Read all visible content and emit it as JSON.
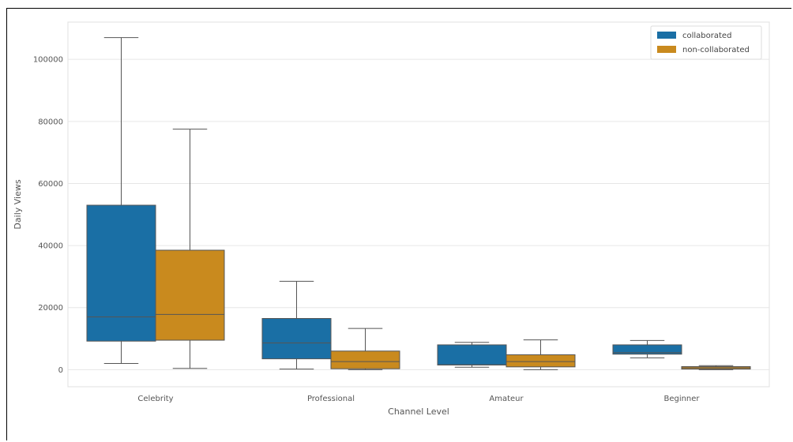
{
  "chart_data": {
    "type": "box",
    "xlabel": "Channel Level",
    "ylabel": "Daily Views",
    "categories": [
      "Celebrity",
      "Professional",
      "Amateur",
      "Beginner"
    ],
    "ylim": [
      -5500,
      112000
    ],
    "yticks": [
      0,
      20000,
      40000,
      60000,
      80000,
      100000
    ],
    "ytick_labels": [
      "0",
      "20000",
      "40000",
      "60000",
      "80000",
      "100000"
    ],
    "grid": true,
    "legend_position": "top-right",
    "series": [
      {
        "name": "collaborated",
        "color": "#1a6fa5",
        "boxes": [
          {
            "whislo": 2000,
            "q1": 9200,
            "med": 17000,
            "q3": 53000,
            "whishi": 107000
          },
          {
            "whislo": 200,
            "q1": 3500,
            "med": 8600,
            "q3": 16500,
            "whishi": 28500
          },
          {
            "whislo": 800,
            "q1": 1500,
            "med": 1600,
            "q3": 8000,
            "whishi": 8800
          },
          {
            "whislo": 3800,
            "q1": 5000,
            "med": 5500,
            "q3": 8000,
            "whishi": 9400
          }
        ]
      },
      {
        "name": "non-collaborated",
        "color": "#c98a1e",
        "boxes": [
          {
            "whislo": 400,
            "q1": 9500,
            "med": 17800,
            "q3": 38500,
            "whishi": 77500
          },
          {
            "whislo": 0,
            "q1": 300,
            "med": 2600,
            "q3": 6000,
            "whishi": 13300
          },
          {
            "whislo": 0,
            "q1": 900,
            "med": 2600,
            "q3": 4800,
            "whishi": 9600
          },
          {
            "whislo": 0,
            "q1": 200,
            "med": 600,
            "q3": 1000,
            "whishi": 1300
          }
        ]
      }
    ]
  }
}
